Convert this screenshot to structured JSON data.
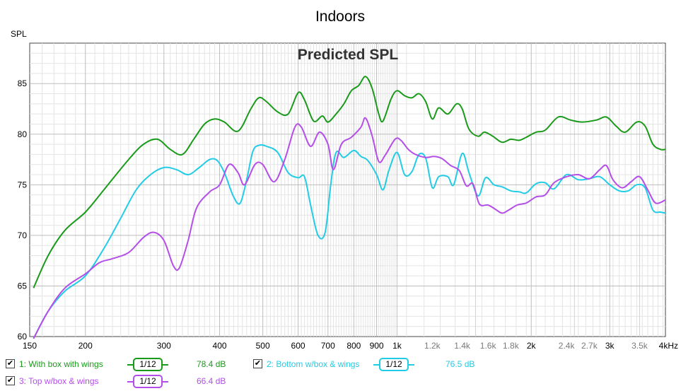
{
  "chart_data": {
    "type": "line",
    "title": "Indoors",
    "subtitle": "Predicted SPL",
    "ylabel": "SPL",
    "xlim": [
      150,
      4000
    ],
    "ylim": [
      60,
      89
    ],
    "xscale": "log",
    "grid": true,
    "y_ticks": [
      60,
      65,
      70,
      75,
      80,
      85
    ],
    "x_ticks": [
      {
        "v": 150,
        "label": "150",
        "dark": true
      },
      {
        "v": 200,
        "label": "200",
        "dark": true
      },
      {
        "v": 300,
        "label": "300",
        "dark": true
      },
      {
        "v": 400,
        "label": "400",
        "dark": true
      },
      {
        "v": 500,
        "label": "500",
        "dark": true
      },
      {
        "v": 600,
        "label": "600",
        "dark": true
      },
      {
        "v": 700,
        "label": "700",
        "dark": true
      },
      {
        "v": 800,
        "label": "800",
        "dark": true
      },
      {
        "v": 900,
        "label": "900",
        "dark": true
      },
      {
        "v": 1000,
        "label": "1k",
        "dark": true
      },
      {
        "v": 1200,
        "label": "1.2k",
        "dark": false
      },
      {
        "v": 1400,
        "label": "1.4k",
        "dark": false
      },
      {
        "v": 1600,
        "label": "1.6k",
        "dark": false
      },
      {
        "v": 1800,
        "label": "1.8k",
        "dark": false
      },
      {
        "v": 2000,
        "label": "2k",
        "dark": true
      },
      {
        "v": 2400,
        "label": "2.4k",
        "dark": false
      },
      {
        "v": 2700,
        "label": "2.7k",
        "dark": false
      },
      {
        "v": 3000,
        "label": "3k",
        "dark": true
      },
      {
        "v": 3500,
        "label": "3.5k",
        "dark": false
      },
      {
        "v": 4000,
        "label": "4kHz",
        "dark": true
      }
    ],
    "series": [
      {
        "name": "1: With box with wings",
        "color": "#1a9a1a",
        "smoothing": "1/12",
        "value_label": "78.4 dB",
        "points": [
          [
            153,
            64.8
          ],
          [
            165,
            68
          ],
          [
            180,
            70.5
          ],
          [
            200,
            72.3
          ],
          [
            220,
            74.5
          ],
          [
            250,
            77.5
          ],
          [
            270,
            79
          ],
          [
            290,
            79.5
          ],
          [
            310,
            78.5
          ],
          [
            330,
            78
          ],
          [
            350,
            79.5
          ],
          [
            370,
            81
          ],
          [
            390,
            81.5
          ],
          [
            410,
            81.2
          ],
          [
            440,
            80.3
          ],
          [
            470,
            82.5
          ],
          [
            490,
            83.6
          ],
          [
            510,
            83.2
          ],
          [
            540,
            82.2
          ],
          [
            570,
            82
          ],
          [
            600,
            84.1
          ],
          [
            620,
            83.4
          ],
          [
            650,
            81.3
          ],
          [
            680,
            81.8
          ],
          [
            700,
            81.2
          ],
          [
            730,
            82
          ],
          [
            760,
            83
          ],
          [
            790,
            84.3
          ],
          [
            820,
            84.8
          ],
          [
            850,
            85.7
          ],
          [
            880,
            84.5
          ],
          [
            910,
            82
          ],
          [
            930,
            81.3
          ],
          [
            970,
            83.5
          ],
          [
            1000,
            84.3
          ],
          [
            1040,
            83.8
          ],
          [
            1080,
            83.6
          ],
          [
            1120,
            84
          ],
          [
            1160,
            83.2
          ],
          [
            1200,
            81.5
          ],
          [
            1240,
            82.6
          ],
          [
            1300,
            82
          ],
          [
            1360,
            83
          ],
          [
            1400,
            82.5
          ],
          [
            1450,
            80.5
          ],
          [
            1520,
            79.8
          ],
          [
            1570,
            80.2
          ],
          [
            1640,
            79.8
          ],
          [
            1720,
            79.2
          ],
          [
            1800,
            79.5
          ],
          [
            1880,
            79.4
          ],
          [
            1950,
            79.7
          ],
          [
            2050,
            80.2
          ],
          [
            2150,
            80.4
          ],
          [
            2300,
            81.7
          ],
          [
            2450,
            81.4
          ],
          [
            2600,
            81.2
          ],
          [
            2800,
            81.4
          ],
          [
            2950,
            81.7
          ],
          [
            3100,
            80.8
          ],
          [
            3250,
            80.2
          ],
          [
            3450,
            81.2
          ],
          [
            3600,
            80.8
          ],
          [
            3750,
            79
          ],
          [
            3900,
            78.5
          ],
          [
            4000,
            78.5
          ]
        ]
      },
      {
        "name": "2: Bottom w/box & wings",
        "color": "#22cce6",
        "smoothing": "1/12",
        "value_label": "76.5 dB",
        "points": [
          [
            153,
            59.8
          ],
          [
            165,
            62.5
          ],
          [
            180,
            64.5
          ],
          [
            200,
            66
          ],
          [
            220,
            68.7
          ],
          [
            240,
            71.7
          ],
          [
            260,
            74.5
          ],
          [
            280,
            76
          ],
          [
            300,
            76.7
          ],
          [
            320,
            76.5
          ],
          [
            340,
            76
          ],
          [
            360,
            76.7
          ],
          [
            380,
            77.5
          ],
          [
            395,
            77.4
          ],
          [
            410,
            76.2
          ],
          [
            430,
            73.8
          ],
          [
            445,
            73.2
          ],
          [
            460,
            75.5
          ],
          [
            475,
            78.3
          ],
          [
            490,
            78.9
          ],
          [
            510,
            78.8
          ],
          [
            540,
            78.2
          ],
          [
            570,
            76.2
          ],
          [
            600,
            75.7
          ],
          [
            620,
            75.8
          ],
          [
            640,
            73
          ],
          [
            665,
            70
          ],
          [
            690,
            70.3
          ],
          [
            710,
            75
          ],
          [
            730,
            78.2
          ],
          [
            760,
            77.7
          ],
          [
            800,
            78.4
          ],
          [
            830,
            77.8
          ],
          [
            860,
            77.4
          ],
          [
            900,
            76
          ],
          [
            930,
            74.5
          ],
          [
            960,
            76.5
          ],
          [
            1000,
            78.2
          ],
          [
            1040,
            76
          ],
          [
            1080,
            76.3
          ],
          [
            1120,
            78
          ],
          [
            1160,
            77.6
          ],
          [
            1200,
            74.7
          ],
          [
            1240,
            75.8
          ],
          [
            1300,
            75.8
          ],
          [
            1340,
            75
          ],
          [
            1400,
            78.1
          ],
          [
            1450,
            76.2
          ],
          [
            1520,
            73.9
          ],
          [
            1580,
            75.7
          ],
          [
            1650,
            75
          ],
          [
            1720,
            74.8
          ],
          [
            1800,
            74.4
          ],
          [
            1880,
            74.3
          ],
          [
            1950,
            74.2
          ],
          [
            2050,
            75.1
          ],
          [
            2150,
            75.2
          ],
          [
            2250,
            74.6
          ],
          [
            2400,
            76
          ],
          [
            2550,
            75.5
          ],
          [
            2700,
            75.6
          ],
          [
            2850,
            75.8
          ],
          [
            3000,
            75
          ],
          [
            3150,
            74.4
          ],
          [
            3300,
            74.4
          ],
          [
            3450,
            75
          ],
          [
            3600,
            74.7
          ],
          [
            3750,
            72.5
          ],
          [
            3900,
            72.3
          ],
          [
            4000,
            72.2
          ]
        ]
      },
      {
        "name": "3: Top w/box & wings",
        "color": "#b44ee8",
        "smoothing": "1/12",
        "value_label": "66.4 dB",
        "points": [
          [
            153,
            59.8
          ],
          [
            165,
            62.5
          ],
          [
            180,
            64.8
          ],
          [
            200,
            66.2
          ],
          [
            215,
            67.3
          ],
          [
            230,
            67.7
          ],
          [
            250,
            68.3
          ],
          [
            270,
            69.8
          ],
          [
            285,
            70.3
          ],
          [
            300,
            69.5
          ],
          [
            315,
            67
          ],
          [
            325,
            66.8
          ],
          [
            340,
            69.5
          ],
          [
            355,
            72.7
          ],
          [
            380,
            74.3
          ],
          [
            400,
            75
          ],
          [
            420,
            77
          ],
          [
            440,
            76.2
          ],
          [
            455,
            75
          ],
          [
            480,
            77
          ],
          [
            500,
            77
          ],
          [
            530,
            75.3
          ],
          [
            560,
            77.5
          ],
          [
            590,
            80.7
          ],
          [
            610,
            80.7
          ],
          [
            640,
            78.8
          ],
          [
            670,
            80.2
          ],
          [
            700,
            79
          ],
          [
            720,
            76.5
          ],
          [
            750,
            79
          ],
          [
            790,
            79.7
          ],
          [
            830,
            80.7
          ],
          [
            850,
            81.6
          ],
          [
            880,
            79.8
          ],
          [
            910,
            77.3
          ],
          [
            940,
            77.9
          ],
          [
            990,
            79.5
          ],
          [
            1020,
            79.4
          ],
          [
            1060,
            78.5
          ],
          [
            1100,
            78
          ],
          [
            1160,
            77.7
          ],
          [
            1210,
            77.8
          ],
          [
            1260,
            77.6
          ],
          [
            1320,
            76.9
          ],
          [
            1380,
            76.4
          ],
          [
            1430,
            74.9
          ],
          [
            1480,
            75.1
          ],
          [
            1530,
            73.1
          ],
          [
            1600,
            73
          ],
          [
            1660,
            72.6
          ],
          [
            1720,
            72.2
          ],
          [
            1780,
            72.5
          ],
          [
            1860,
            73
          ],
          [
            1950,
            73.2
          ],
          [
            2050,
            73.8
          ],
          [
            2150,
            74
          ],
          [
            2250,
            75.2
          ],
          [
            2400,
            75.8
          ],
          [
            2550,
            76
          ],
          [
            2700,
            75.6
          ],
          [
            2850,
            76.5
          ],
          [
            2950,
            76.9
          ],
          [
            3050,
            75.5
          ],
          [
            3200,
            74.7
          ],
          [
            3350,
            75.3
          ],
          [
            3500,
            75.8
          ],
          [
            3650,
            74.5
          ],
          [
            3800,
            73.2
          ],
          [
            4000,
            73.5
          ]
        ]
      }
    ]
  }
}
